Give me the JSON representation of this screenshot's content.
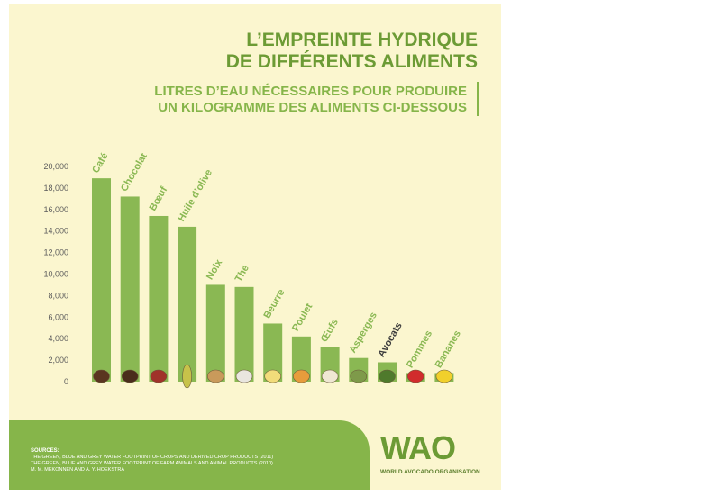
{
  "title_line1": "L’EMPREINTE HYDRIQUE",
  "title_line2": "DE DIFFÉRENTS ALIMENTS",
  "subtitle_line1": "LITRES D’EAU NÉCESSAIRES POUR PRODUIRE",
  "subtitle_line2": "UN KILOGRAMME DES ALIMENTS CI-DESSOUS",
  "colors": {
    "bar": "#8ab853",
    "title": "#6c9b35",
    "background": "#fbf6cf",
    "highlight_label": "#3d3d3d"
  },
  "chart_data": {
    "type": "bar",
    "categories": [
      "Café",
      "Chocolat",
      "Bœuf",
      "Huile d’olive",
      "Noix",
      "Thé",
      "Beurre",
      "Poulet",
      "Œufs",
      "Asperges",
      "Avocats",
      "Pommes",
      "Bananes"
    ],
    "values": [
      18900,
      17200,
      15400,
      14400,
      9000,
      8800,
      5400,
      4200,
      3200,
      2200,
      1800,
      800,
      800
    ],
    "ylim": [
      0,
      20000
    ],
    "yticks": [
      "0",
      "2,000",
      "4,000",
      "6,000",
      "8,000",
      "10,000",
      "12,000",
      "14,000",
      "16,000",
      "18,000",
      "20,000"
    ],
    "highlight": "Avocats",
    "grid": false,
    "xlabel": "",
    "ylabel": ""
  },
  "icons": [
    "coffee-beans-icon",
    "chocolate-icon",
    "steak-icon",
    "olive-oil-bottle-icon",
    "nuts-icon",
    "teacup-icon",
    "butter-icon",
    "chicken-icon",
    "eggs-icon",
    "asparagus-icon",
    "avocado-icon",
    "apple-icon",
    "banana-icon"
  ],
  "sources": {
    "heading": "SOURCES:",
    "line1": "THE GREEN, BLUE AND GREY WATER FOOTPRINT OF CROPS AND DERIVED CROP PRODUCTS (2011)",
    "line2": "THE GREEN, BLUE AND GREY WATER FOOTPRINT OF FARM ANIMALS AND ANIMAL PRODUCTS (2010)",
    "line3": "M. M. MEKONNEN AND A. Y. HOEKSTRA"
  },
  "logo": {
    "text": "WAO",
    "org": "WORLD AVOCADO ORGANISATION"
  }
}
